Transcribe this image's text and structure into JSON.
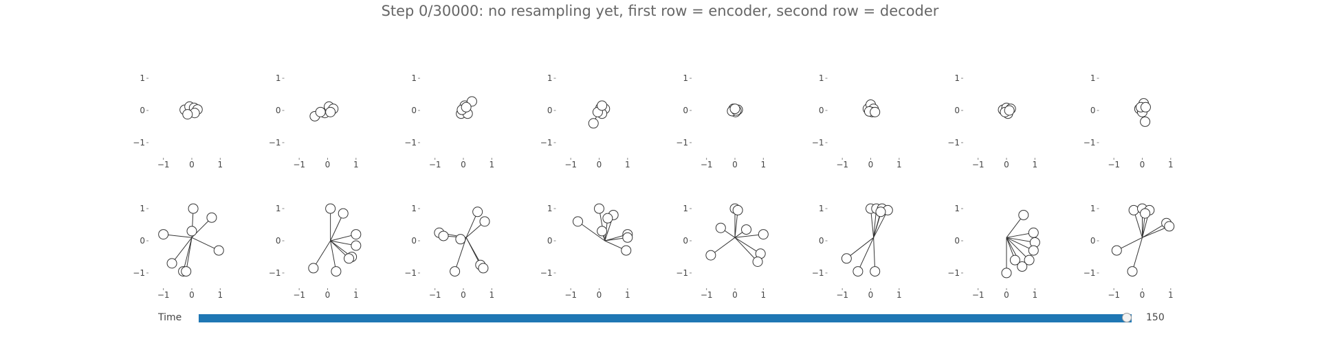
{
  "chart_data": {
    "type": "scatter",
    "title": "Step 0/30000: no resampling yet, first row = encoder, second row = decoder",
    "xlim": [
      -1.5,
      1.5
    ],
    "ylim": [
      -1.3,
      1.3
    ],
    "xticks": [
      "−1",
      "0",
      "1"
    ],
    "yticks": [
      "1",
      "0",
      "−1"
    ],
    "rows": [
      {
        "panels": [
          {
            "hub": [
              0.1,
              0.0
            ],
            "tips": [
              [
                -0.25,
                0.02
              ],
              [
                -0.08,
                0.12
              ],
              [
                0.08,
                0.08
              ],
              [
                0.2,
                0.03
              ],
              [
                0.1,
                -0.08
              ],
              [
                -0.15,
                -0.12
              ]
            ]
          },
          {
            "hub": [
              0.0,
              0.0
            ],
            "tips": [
              [
                -0.45,
                -0.18
              ],
              [
                -0.1,
                -0.08
              ],
              [
                0.05,
                0.12
              ],
              [
                0.2,
                0.05
              ],
              [
                0.1,
                -0.05
              ],
              [
                -0.25,
                -0.05
              ]
            ]
          },
          {
            "hub": [
              0.1,
              0.1
            ],
            "tips": [
              [
                -0.08,
                -0.1
              ],
              [
                0.05,
                0.15
              ],
              [
                0.3,
                0.28
              ],
              [
                0.15,
                -0.1
              ],
              [
                -0.05,
                0.02
              ],
              [
                0.1,
                0.1
              ]
            ]
          },
          {
            "hub": [
              0.0,
              0.0
            ],
            "tips": [
              [
                -0.2,
                -0.4
              ],
              [
                0.05,
                0.08
              ],
              [
                0.2,
                0.05
              ],
              [
                0.1,
                -0.1
              ],
              [
                -0.05,
                -0.05
              ],
              [
                0.1,
                0.15
              ]
            ]
          },
          {
            "hub": [
              0.0,
              0.0
            ],
            "tips": [
              [
                -0.05,
                0.05
              ],
              [
                0.1,
                0.02
              ],
              [
                0.02,
                -0.05
              ],
              [
                -0.1,
                -0.02
              ],
              [
                0.05,
                0.0
              ],
              [
                0.0,
                0.05
              ]
            ]
          },
          {
            "hub": [
              0.0,
              0.0
            ],
            "tips": [
              [
                -0.1,
                0.05
              ],
              [
                0.0,
                0.18
              ],
              [
                0.1,
                0.05
              ],
              [
                0.05,
                -0.05
              ],
              [
                -0.05,
                -0.03
              ],
              [
                0.15,
                -0.05
              ]
            ]
          },
          {
            "hub": [
              0.0,
              0.0
            ],
            "tips": [
              [
                -0.12,
                0.02
              ],
              [
                0.0,
                0.08
              ],
              [
                0.15,
                0.05
              ],
              [
                0.05,
                -0.1
              ],
              [
                -0.05,
                -0.05
              ],
              [
                0.1,
                0.0
              ]
            ]
          },
          {
            "hub": [
              0.0,
              0.0
            ],
            "tips": [
              [
                -0.1,
                0.05
              ],
              [
                0.05,
                0.22
              ],
              [
                0.0,
                -0.05
              ],
              [
                0.1,
                -0.35
              ],
              [
                -0.05,
                0.1
              ],
              [
                0.12,
                0.1
              ]
            ]
          }
        ]
      },
      {
        "panels": [
          {
            "hub": [
              0.0,
              0.1
            ],
            "tips": [
              [
                0.05,
                1.0
              ],
              [
                0.7,
                0.72
              ],
              [
                -1.0,
                0.2
              ],
              [
                0.95,
                -0.3
              ],
              [
                -0.7,
                -0.7
              ],
              [
                -0.3,
                -0.95
              ],
              [
                -0.2,
                -0.95
              ],
              [
                0.0,
                0.3
              ]
            ]
          },
          {
            "hub": [
              0.1,
              0.0
            ],
            "tips": [
              [
                0.1,
                1.0
              ],
              [
                0.55,
                0.85
              ],
              [
                1.0,
                0.2
              ],
              [
                1.0,
                -0.15
              ],
              [
                0.85,
                -0.5
              ],
              [
                0.75,
                -0.55
              ],
              [
                0.3,
                -0.95
              ],
              [
                -0.5,
                -0.85
              ]
            ]
          },
          {
            "hub": [
              0.1,
              0.1
            ],
            "tips": [
              [
                0.5,
                0.9
              ],
              [
                0.75,
                0.6
              ],
              [
                -0.85,
                0.25
              ],
              [
                -0.7,
                0.15
              ],
              [
                -0.1,
                0.05
              ],
              [
                0.6,
                -0.75
              ],
              [
                0.7,
                -0.85
              ],
              [
                -0.3,
                -0.95
              ]
            ]
          },
          {
            "hub": [
              0.2,
              0.0
            ],
            "tips": [
              [
                -0.75,
                0.6
              ],
              [
                0.0,
                1.0
              ],
              [
                0.5,
                0.8
              ],
              [
                1.0,
                0.2
              ],
              [
                1.0,
                0.1
              ],
              [
                0.95,
                -0.3
              ],
              [
                0.1,
                0.3
              ],
              [
                0.3,
                0.7
              ]
            ]
          },
          {
            "hub": [
              0.0,
              0.1
            ],
            "tips": [
              [
                0.0,
                1.0
              ],
              [
                0.1,
                0.95
              ],
              [
                -0.5,
                0.4
              ],
              [
                1.0,
                0.2
              ],
              [
                0.9,
                -0.4
              ],
              [
                0.8,
                -0.65
              ],
              [
                -0.85,
                -0.45
              ],
              [
                0.4,
                0.35
              ]
            ]
          },
          {
            "hub": [
              0.1,
              0.1
            ],
            "tips": [
              [
                0.0,
                1.0
              ],
              [
                0.2,
                1.0
              ],
              [
                0.4,
                1.0
              ],
              [
                0.6,
                0.95
              ],
              [
                -0.85,
                -0.55
              ],
              [
                -0.45,
                -0.95
              ],
              [
                0.15,
                -0.95
              ],
              [
                0.35,
                0.9
              ]
            ]
          },
          {
            "hub": [
              0.0,
              0.1
            ],
            "tips": [
              [
                0.6,
                0.8
              ],
              [
                0.95,
                0.25
              ],
              [
                1.0,
                -0.05
              ],
              [
                0.95,
                -0.3
              ],
              [
                0.8,
                -0.6
              ],
              [
                0.55,
                -0.8
              ],
              [
                0.0,
                -1.0
              ],
              [
                0.3,
                -0.6
              ]
            ]
          },
          {
            "hub": [
              0.0,
              0.1
            ],
            "tips": [
              [
                -0.3,
                0.95
              ],
              [
                0.0,
                1.0
              ],
              [
                0.25,
                0.95
              ],
              [
                0.85,
                0.55
              ],
              [
                0.95,
                0.45
              ],
              [
                -0.9,
                -0.3
              ],
              [
                -0.35,
                -0.95
              ],
              [
                0.1,
                0.85
              ]
            ]
          }
        ]
      }
    ]
  },
  "slider": {
    "label": "Time",
    "value": "150",
    "fraction": 1.0
  },
  "colors": {
    "line": "#333333",
    "slider_track": "#1f77b4"
  }
}
